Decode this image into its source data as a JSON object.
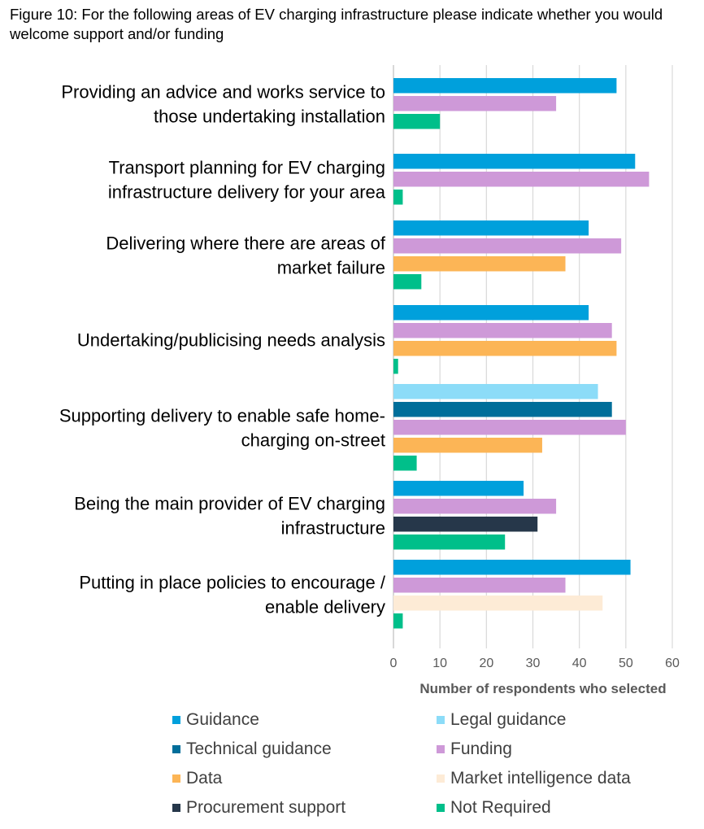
{
  "title": "Figure 10: For the following areas of EV charging infrastructure please indicate whether you would welcome support and/or funding",
  "chart_data": {
    "type": "bar",
    "orientation": "horizontal",
    "title": "Figure 10: For the following areas of EV charging infrastructure please indicate whether you would welcome support and/or funding",
    "xlabel": "Number of respondents who selected",
    "ylabel": "",
    "xlim": [
      0,
      60
    ],
    "xticks": [
      "0",
      "10",
      "20",
      "30",
      "40",
      "50",
      "60"
    ],
    "grid": "vertical",
    "legend_position": "bottom",
    "series_colors": {
      "Guidance": "#00A0DC",
      "Legal guidance": "#8CDCF8",
      "Technical guidance": "#006E9A",
      "Funding": "#CE99D8",
      "Data": "#FCB556",
      "Market intelligence data": "#FDEBD6",
      "Procurement support": "#26374A",
      "Not Required": "#00BF8A"
    },
    "legend": [
      "Guidance",
      "Legal guidance",
      "Technical guidance",
      "Funding",
      "Data",
      "Market intelligence data",
      "Procurement support",
      "Not Required"
    ],
    "categories": [
      {
        "label_lines": [
          "Providing an advice and works service to",
          "those undertaking installation"
        ],
        "bars": [
          {
            "series": "Guidance",
            "value": 48
          },
          {
            "series": "Funding",
            "value": 35
          },
          {
            "series": "Not Required",
            "value": 10
          }
        ]
      },
      {
        "label_lines": [
          "Transport planning for EV charging",
          "infrastructure delivery for your area"
        ],
        "bars": [
          {
            "series": "Guidance",
            "value": 52
          },
          {
            "series": "Funding",
            "value": 55
          },
          {
            "series": "Not Required",
            "value": 2
          }
        ]
      },
      {
        "label_lines": [
          "Delivering where there are areas of",
          "market failure"
        ],
        "bars": [
          {
            "series": "Guidance",
            "value": 42
          },
          {
            "series": "Funding",
            "value": 49
          },
          {
            "series": "Data",
            "value": 37
          },
          {
            "series": "Not Required",
            "value": 6
          }
        ]
      },
      {
        "label_lines": [
          "Undertaking/publicising needs analysis"
        ],
        "bars": [
          {
            "series": "Guidance",
            "value": 42
          },
          {
            "series": "Funding",
            "value": 47
          },
          {
            "series": "Data",
            "value": 48
          },
          {
            "series": "Not Required",
            "value": 1
          }
        ]
      },
      {
        "label_lines": [
          "Supporting delivery to enable safe home-",
          "charging on-street"
        ],
        "bars": [
          {
            "series": "Legal guidance",
            "value": 44
          },
          {
            "series": "Technical guidance",
            "value": 47
          },
          {
            "series": "Funding",
            "value": 50
          },
          {
            "series": "Data",
            "value": 32
          },
          {
            "series": "Not Required",
            "value": 5
          }
        ]
      },
      {
        "label_lines": [
          "Being the main provider of EV charging",
          "infrastructure"
        ],
        "bars": [
          {
            "series": "Guidance",
            "value": 28
          },
          {
            "series": "Funding",
            "value": 35
          },
          {
            "series": "Procurement support",
            "value": 31
          },
          {
            "series": "Not Required",
            "value": 24
          }
        ]
      },
      {
        "label_lines": [
          "Putting in place policies to encourage /",
          "enable delivery"
        ],
        "bars": [
          {
            "series": "Guidance",
            "value": 51
          },
          {
            "series": "Funding",
            "value": 37
          },
          {
            "series": "Market intelligence data",
            "value": 45
          },
          {
            "series": "Not Required",
            "value": 2
          }
        ]
      }
    ]
  }
}
